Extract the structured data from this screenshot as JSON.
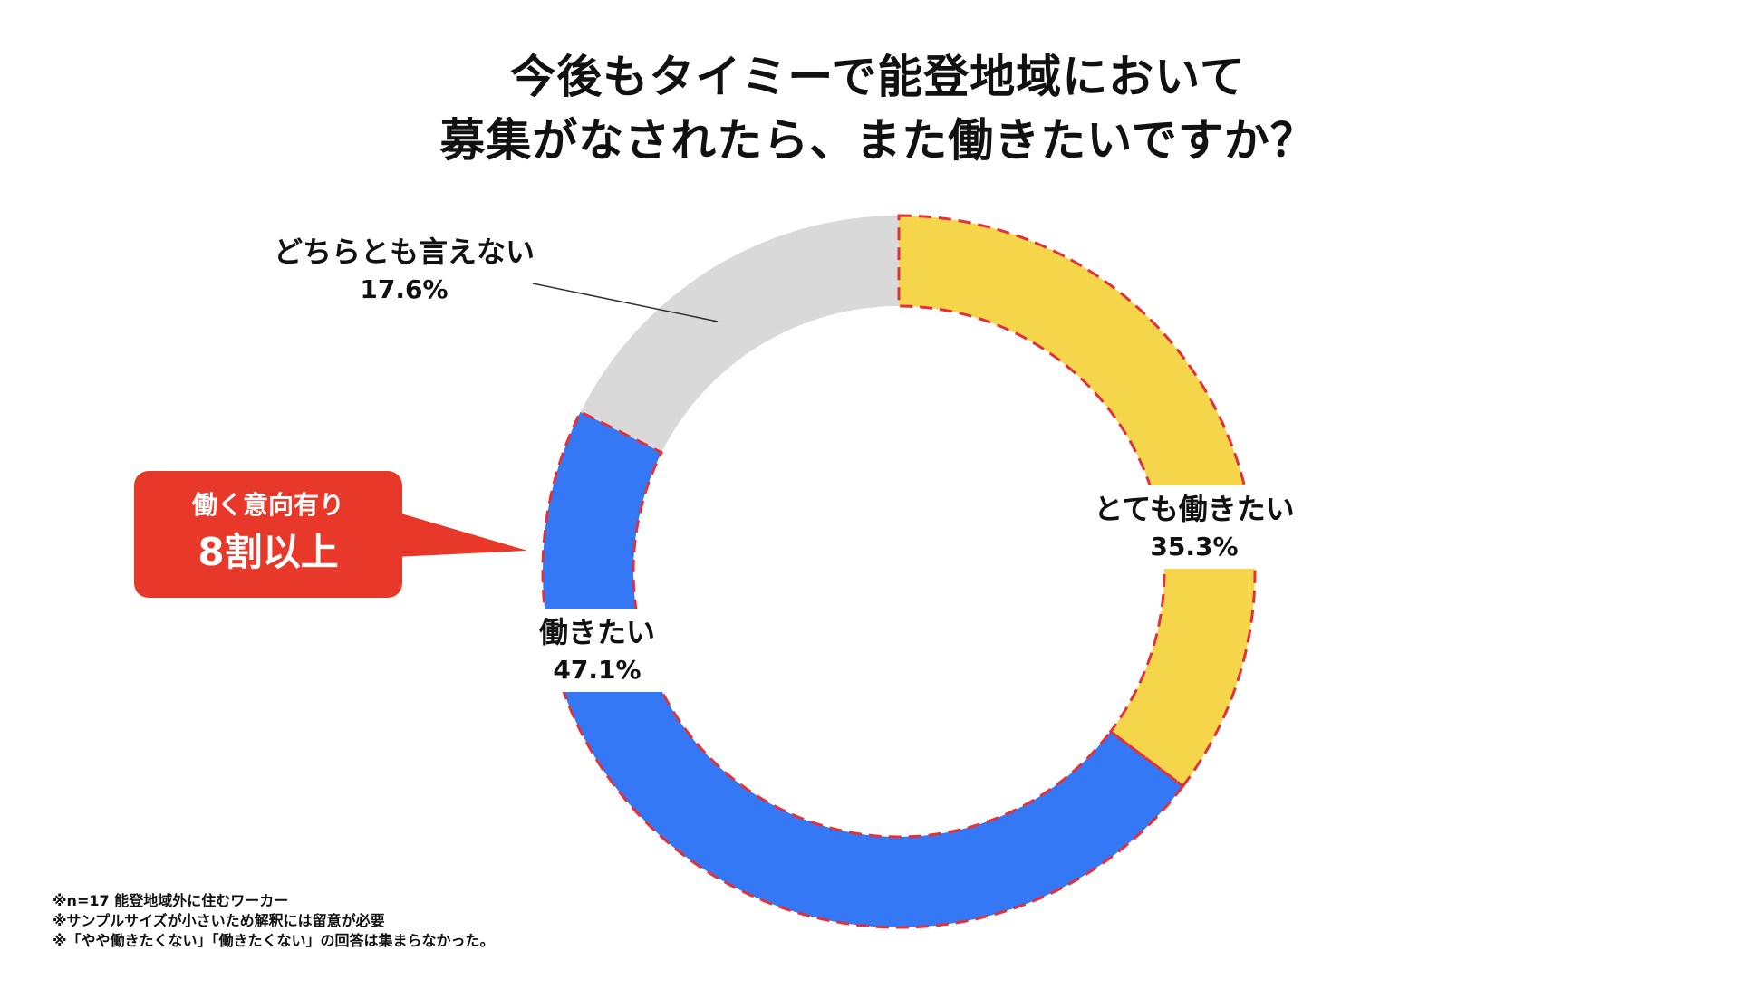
{
  "title": {
    "line1": "今後もタイミーで能登地域において",
    "line2": "募集がなされたら、また働きたいですか？"
  },
  "chart_data": {
    "type": "pie",
    "variant": "donut",
    "title": "今後もタイミーで能登地域において募集がなされたら、また働きたいですか？",
    "series": [
      {
        "name": "とても働きたい",
        "value": 35.3,
        "label": "35.3%",
        "color": "#F5D64A",
        "highlighted": true
      },
      {
        "name": "働きたい",
        "value": 47.1,
        "label": "47.1%",
        "color": "#3478F6",
        "highlighted": true
      },
      {
        "name": "どちらとも言えない",
        "value": 17.6,
        "label": "17.6%",
        "color": "#D9D9D9",
        "highlighted": false
      }
    ],
    "start": "12 o'clock",
    "direction": "clockwise",
    "highlight_outline_color": "#E0323C"
  },
  "callout": {
    "line1": "働く意向有り",
    "line2": "8割以上",
    "color": "#E8382A"
  },
  "notes": [
    "※n=17 能登地域外に住むワーカー",
    "※サンプルサイズが小さいため解釈には留意が必要",
    "※「やや働きたくない」「働きたくない」の回答は集まらなかった。"
  ]
}
